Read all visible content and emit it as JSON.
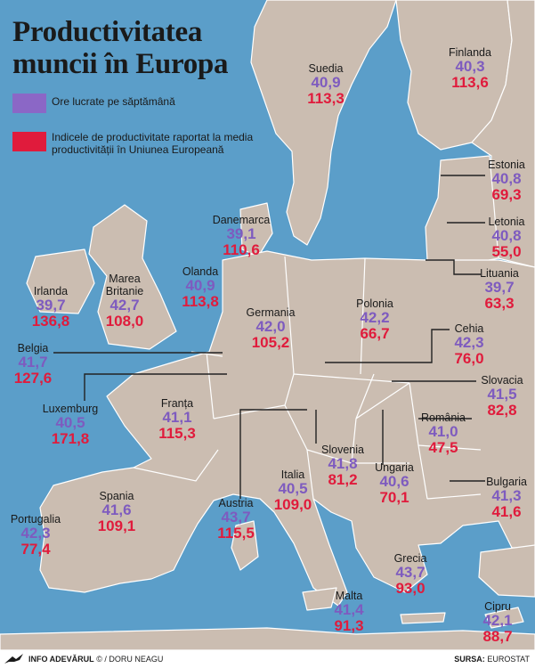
{
  "title_line1": "Productivitatea",
  "title_line2": "muncii în Europa",
  "legend": {
    "hours_label": "Ore lucrate pe săptămână",
    "productivity_label": "Indicele de productivitate raportat la media productivității în Uniunea Europeană",
    "hours_color": "#8b67c6",
    "productivity_color": "#e01b3c"
  },
  "colors": {
    "sea": "#5b9ec9",
    "land": "#cbbdb1",
    "border": "#ffffff",
    "leader": "#222222"
  },
  "countries": [
    {
      "id": "suedia",
      "name": "Suedia",
      "hours": "40,9",
      "productivity": "113,3"
    },
    {
      "id": "finlanda",
      "name": "Finlanda",
      "hours": "40,3",
      "productivity": "113,6"
    },
    {
      "id": "estonia",
      "name": "Estonia",
      "hours": "40,8",
      "productivity": "69,3"
    },
    {
      "id": "letonia",
      "name": "Letonia",
      "hours": "40,8",
      "productivity": "55,0"
    },
    {
      "id": "lituania",
      "name": "Lituania",
      "hours": "39,7",
      "productivity": "63,3"
    },
    {
      "id": "danemarca",
      "name": "Danemarca",
      "hours": "39,1",
      "productivity": "110,6"
    },
    {
      "id": "irlanda",
      "name": "Irlanda",
      "hours": "39,7",
      "productivity": "136,8"
    },
    {
      "id": "marea-britanie",
      "name": "Marea Britanie",
      "hours": "42,7",
      "productivity": "108,0"
    },
    {
      "id": "olanda",
      "name": "Olanda",
      "hours": "40,9",
      "productivity": "113,8"
    },
    {
      "id": "germania",
      "name": "Germania",
      "hours": "42,0",
      "productivity": "105,2"
    },
    {
      "id": "polonia",
      "name": "Polonia",
      "hours": "42,2",
      "productivity": "66,7"
    },
    {
      "id": "cehia",
      "name": "Cehia",
      "hours": "42,3",
      "productivity": "76,0"
    },
    {
      "id": "belgia",
      "name": "Belgia",
      "hours": "41,7",
      "productivity": "127,6"
    },
    {
      "id": "slovacia",
      "name": "Slovacia",
      "hours": "41,5",
      "productivity": "82,8"
    },
    {
      "id": "luxemburg",
      "name": "Luxemburg",
      "hours": "40,5",
      "productivity": "171,8"
    },
    {
      "id": "franta",
      "name": "Franța",
      "hours": "41,1",
      "productivity": "115,3"
    },
    {
      "id": "romania",
      "name": "România",
      "hours": "41,0",
      "productivity": "47,5"
    },
    {
      "id": "slovenia",
      "name": "Slovenia",
      "hours": "41,8",
      "productivity": "81,2"
    },
    {
      "id": "ungaria",
      "name": "Ungaria",
      "hours": "40,6",
      "productivity": "70,1"
    },
    {
      "id": "italia",
      "name": "Italia",
      "hours": "40,5",
      "productivity": "109,0"
    },
    {
      "id": "spania",
      "name": "Spania",
      "hours": "41,6",
      "productivity": "109,1"
    },
    {
      "id": "austria",
      "name": "Austria",
      "hours": "43,7",
      "productivity": "115,5"
    },
    {
      "id": "bulgaria",
      "name": "Bulgaria",
      "hours": "41,3",
      "productivity": "41,6"
    },
    {
      "id": "portugalia",
      "name": "Portugalia",
      "hours": "42,3",
      "productivity": "77,4"
    },
    {
      "id": "grecia",
      "name": "Grecia",
      "hours": "43,7",
      "productivity": "93,0"
    },
    {
      "id": "malta",
      "name": "Malta",
      "hours": "41,4",
      "productivity": "91,3"
    },
    {
      "id": "cipru",
      "name": "Cipru",
      "hours": "42,1",
      "productivity": "88,7"
    }
  ],
  "footer": {
    "credit_brand": "INFO ADEVĂRUL",
    "credit_rest": "© / DORU NEAGU",
    "source_label": "SURSA:",
    "source_name": "EUROSTAT"
  }
}
